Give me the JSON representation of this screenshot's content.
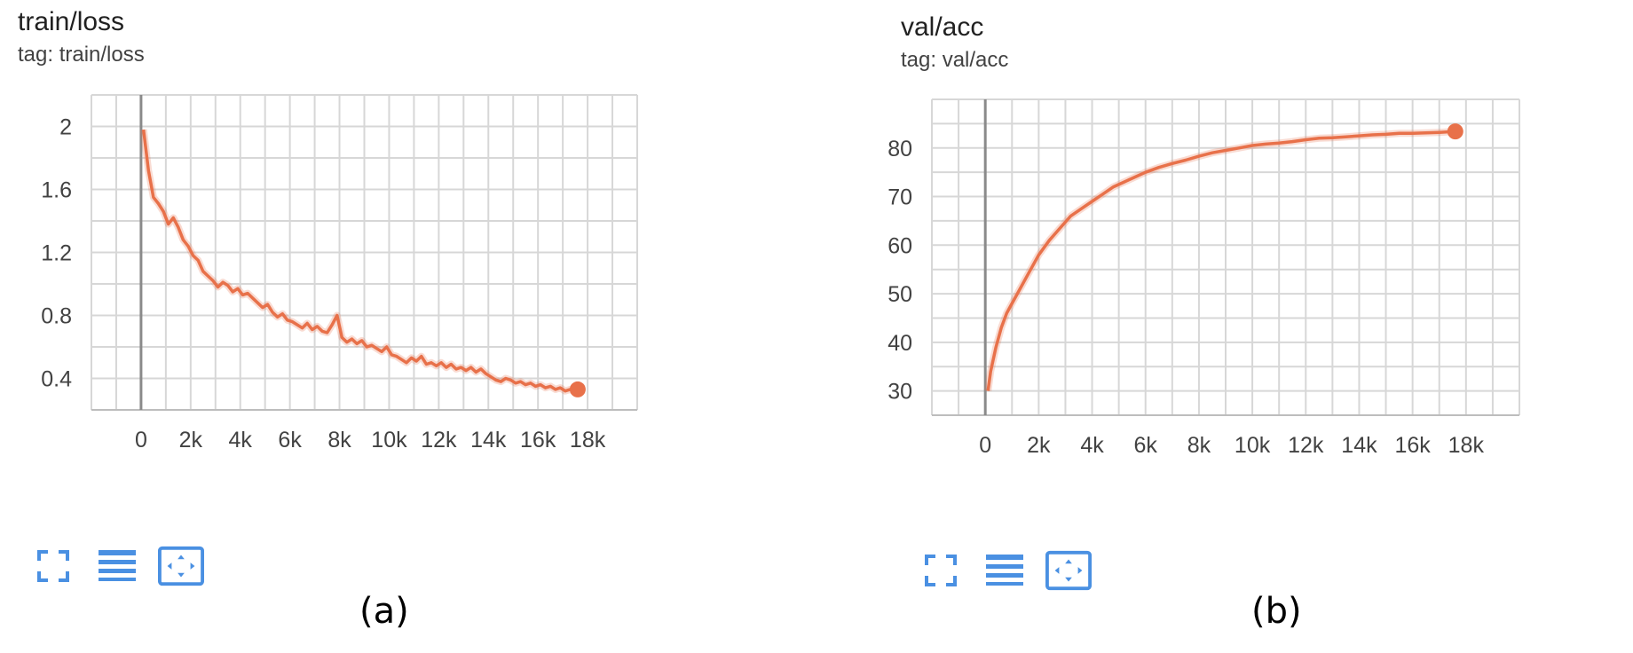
{
  "chart_data": [
    {
      "id": "a",
      "type": "line",
      "title": "train/loss",
      "subtitle": "tag: train/loss",
      "caption": "(a)",
      "x_ticks": [
        0,
        2000,
        4000,
        6000,
        8000,
        10000,
        12000,
        14000,
        16000,
        18000
      ],
      "x_tick_labels": [
        "0",
        "2k",
        "4k",
        "6k",
        "8k",
        "10k",
        "12k",
        "14k",
        "16k",
        "18k"
      ],
      "y_ticks": [
        0.4,
        0.8,
        1.2,
        1.6,
        2
      ],
      "y_tick_labels": [
        "0.4",
        "0.8",
        "1.2",
        "1.6",
        "2"
      ],
      "xlim": [
        -2000,
        20000
      ],
      "ylim": [
        0.2,
        2.2
      ],
      "grid": true,
      "series": [
        {
          "color": "#e8714a",
          "x": [
            100,
            300,
            500,
            700,
            900,
            1100,
            1300,
            1500,
            1700,
            1900,
            2100,
            2300,
            2500,
            2700,
            2900,
            3100,
            3300,
            3500,
            3700,
            3900,
            4100,
            4300,
            4500,
            4700,
            4900,
            5100,
            5300,
            5500,
            5700,
            5900,
            6100,
            6300,
            6500,
            6700,
            6900,
            7100,
            7300,
            7500,
            7700,
            7900,
            8100,
            8300,
            8500,
            8700,
            8900,
            9100,
            9300,
            9500,
            9700,
            9900,
            10100,
            10300,
            10500,
            10700,
            10900,
            11100,
            11300,
            11500,
            11700,
            11900,
            12100,
            12300,
            12500,
            12700,
            12900,
            13100,
            13300,
            13500,
            13700,
            13900,
            14100,
            14300,
            14500,
            14700,
            14900,
            15100,
            15300,
            15500,
            15700,
            15900,
            16100,
            16300,
            16500,
            16700,
            16900,
            17100,
            17300,
            17500,
            17600
          ],
          "y": [
            1.98,
            1.72,
            1.55,
            1.51,
            1.46,
            1.38,
            1.42,
            1.36,
            1.28,
            1.24,
            1.18,
            1.15,
            1.08,
            1.05,
            1.02,
            0.98,
            1.01,
            0.99,
            0.95,
            0.97,
            0.93,
            0.94,
            0.91,
            0.88,
            0.85,
            0.87,
            0.82,
            0.79,
            0.81,
            0.77,
            0.76,
            0.74,
            0.72,
            0.75,
            0.71,
            0.73,
            0.7,
            0.69,
            0.74,
            0.8,
            0.66,
            0.63,
            0.65,
            0.62,
            0.64,
            0.6,
            0.61,
            0.59,
            0.57,
            0.6,
            0.55,
            0.54,
            0.52,
            0.5,
            0.53,
            0.51,
            0.54,
            0.49,
            0.5,
            0.48,
            0.5,
            0.47,
            0.49,
            0.46,
            0.47,
            0.45,
            0.47,
            0.44,
            0.46,
            0.43,
            0.41,
            0.39,
            0.38,
            0.4,
            0.39,
            0.37,
            0.38,
            0.36,
            0.37,
            0.35,
            0.36,
            0.34,
            0.35,
            0.33,
            0.34,
            0.32,
            0.33,
            0.32,
            0.33
          ]
        }
      ]
    },
    {
      "id": "b",
      "type": "line",
      "title": "val/acc",
      "subtitle": "tag: val/acc",
      "caption": "(b)",
      "x_ticks": [
        0,
        2000,
        4000,
        6000,
        8000,
        10000,
        12000,
        14000,
        16000,
        18000
      ],
      "x_tick_labels": [
        "0",
        "2k",
        "4k",
        "6k",
        "8k",
        "10k",
        "12k",
        "14k",
        "16k",
        "18k"
      ],
      "y_ticks": [
        30,
        40,
        50,
        60,
        70,
        80
      ],
      "y_tick_labels": [
        "30",
        "40",
        "50",
        "60",
        "70",
        "80"
      ],
      "xlim": [
        -2000,
        20000
      ],
      "ylim": [
        25,
        90
      ],
      "grid": true,
      "series": [
        {
          "color": "#e8714a",
          "x": [
            100,
            200,
            400,
            600,
            800,
            1000,
            1300,
            1600,
            2000,
            2400,
            2800,
            3200,
            3600,
            4000,
            4400,
            4800,
            5200,
            5600,
            6000,
            6500,
            7000,
            7500,
            8000,
            8500,
            9000,
            9500,
            10000,
            10500,
            11000,
            11500,
            12000,
            12500,
            13000,
            13500,
            14000,
            14500,
            15000,
            15500,
            16000,
            16500,
            17000,
            17600
          ],
          "y": [
            30,
            34,
            39,
            43,
            46,
            48,
            51,
            54,
            58,
            61,
            63.5,
            66,
            67.5,
            69,
            70.5,
            72,
            73,
            74,
            75,
            76,
            76.8,
            77.5,
            78.3,
            79,
            79.5,
            80,
            80.5,
            80.8,
            81,
            81.3,
            81.7,
            82,
            82.1,
            82.3,
            82.5,
            82.7,
            82.8,
            83,
            83,
            83.1,
            83.2,
            83.4
          ]
        }
      ]
    }
  ],
  "toolbar_icons": [
    "fullscreen-icon",
    "data-table-icon",
    "fit-domain-icon"
  ],
  "colors": {
    "accent": "#e8714a",
    "toolbar_blue": "#4a90e2",
    "grid": "#d7d7d7",
    "zero_axis": "#8a8a8a"
  }
}
